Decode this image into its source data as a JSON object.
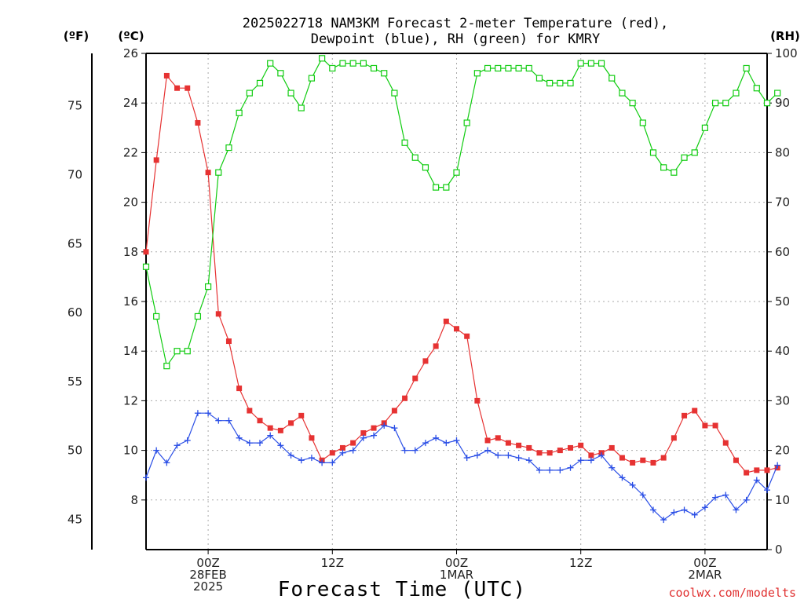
{
  "chart_data": {
    "type": "line",
    "title_line1": "2025022718 NAM3KM Forecast 2-meter Temperature (red),",
    "title_line2": "Dewpoint (blue), RH (green) for KMRY",
    "xlabel": "Forecast Time (UTC)",
    "credit": "coolwx.com/modelts",
    "units": {
      "fahrenheit": "(ºF)",
      "celsius": "(ºC)",
      "rh": "(RH)"
    },
    "colors": {
      "temperature": "#e63232",
      "dewpoint": "#2a4ee6",
      "rh": "#10cc10",
      "credit": "#e03030"
    },
    "x_range": [
      0,
      60
    ],
    "x_ticks": [
      {
        "hour": 6,
        "lines": [
          "00Z",
          "28FEB",
          "2025"
        ]
      },
      {
        "hour": 18,
        "lines": [
          "12Z"
        ]
      },
      {
        "hour": 30,
        "lines": [
          "00Z",
          "1MAR"
        ]
      },
      {
        "hour": 42,
        "lines": [
          "12Z"
        ]
      },
      {
        "hour": 54,
        "lines": [
          "00Z",
          "2MAR"
        ]
      }
    ],
    "ylim_celsius": [
      6.0,
      26.0
    ],
    "yticks_celsius": [
      "8",
      "10",
      "12",
      "14",
      "16",
      "18",
      "20",
      "22",
      "24",
      "26"
    ],
    "yticks_fahrenheit": [
      "45",
      "50",
      "55",
      "60",
      "65",
      "70",
      "75"
    ],
    "ylim_rh": [
      0,
      100
    ],
    "yticks_rh": [
      "0",
      "10",
      "20",
      "30",
      "40",
      "50",
      "60",
      "70",
      "80",
      "90",
      "100"
    ],
    "grid": true,
    "series": [
      {
        "key": "temperature",
        "unit": "C",
        "values": [
          18.0,
          21.7,
          25.1,
          24.6,
          24.6,
          23.2,
          21.2,
          15.5,
          14.4,
          12.5,
          11.6,
          11.2,
          10.9,
          10.8,
          11.1,
          11.4,
          10.5,
          9.6,
          9.9,
          10.1,
          10.3,
          10.7,
          10.9,
          11.1,
          11.6,
          12.1,
          12.9,
          13.6,
          14.2,
          15.2,
          14.9,
          14.6,
          12.0,
          10.4,
          10.5,
          10.3,
          10.2,
          10.1,
          9.9,
          9.9,
          10.0,
          10.1,
          10.2,
          9.8,
          9.9,
          10.1,
          9.7,
          9.5,
          9.6,
          9.5,
          9.7,
          10.5,
          11.4,
          11.6,
          11.0,
          11.0,
          10.3,
          9.6,
          9.1,
          9.2,
          9.2,
          9.3
        ]
      },
      {
        "key": "dewpoint",
        "unit": "C",
        "values": [
          8.9,
          10.0,
          9.5,
          10.2,
          10.4,
          11.5,
          11.5,
          11.2,
          11.2,
          10.5,
          10.3,
          10.3,
          10.6,
          10.2,
          9.8,
          9.6,
          9.7,
          9.5,
          9.5,
          9.9,
          10.0,
          10.5,
          10.6,
          11.0,
          10.9,
          10.0,
          10.0,
          10.3,
          10.5,
          10.3,
          10.4,
          9.7,
          9.8,
          10.0,
          9.8,
          9.8,
          9.7,
          9.6,
          9.2,
          9.2,
          9.2,
          9.3,
          9.6,
          9.6,
          9.8,
          9.3,
          8.9,
          8.6,
          8.2,
          7.6,
          7.2,
          7.5,
          7.6,
          7.4,
          7.7,
          8.1,
          8.2,
          7.6,
          8.0,
          8.8,
          8.4,
          9.4
        ]
      },
      {
        "key": "rh",
        "unit": "%",
        "values": [
          57,
          47,
          37,
          40,
          40,
          47,
          53,
          76,
          81,
          88,
          92,
          94,
          98,
          96,
          92,
          89,
          95,
          99,
          97,
          98,
          98,
          98,
          97,
          96,
          92,
          82,
          79,
          77,
          73,
          73,
          76,
          86,
          96,
          97,
          97,
          97,
          97,
          97,
          95,
          94,
          94,
          94,
          98,
          98,
          98,
          95,
          92,
          90,
          86,
          80,
          77,
          76,
          79,
          80,
          85,
          90,
          90,
          92,
          97,
          93,
          90,
          92
        ]
      }
    ]
  }
}
